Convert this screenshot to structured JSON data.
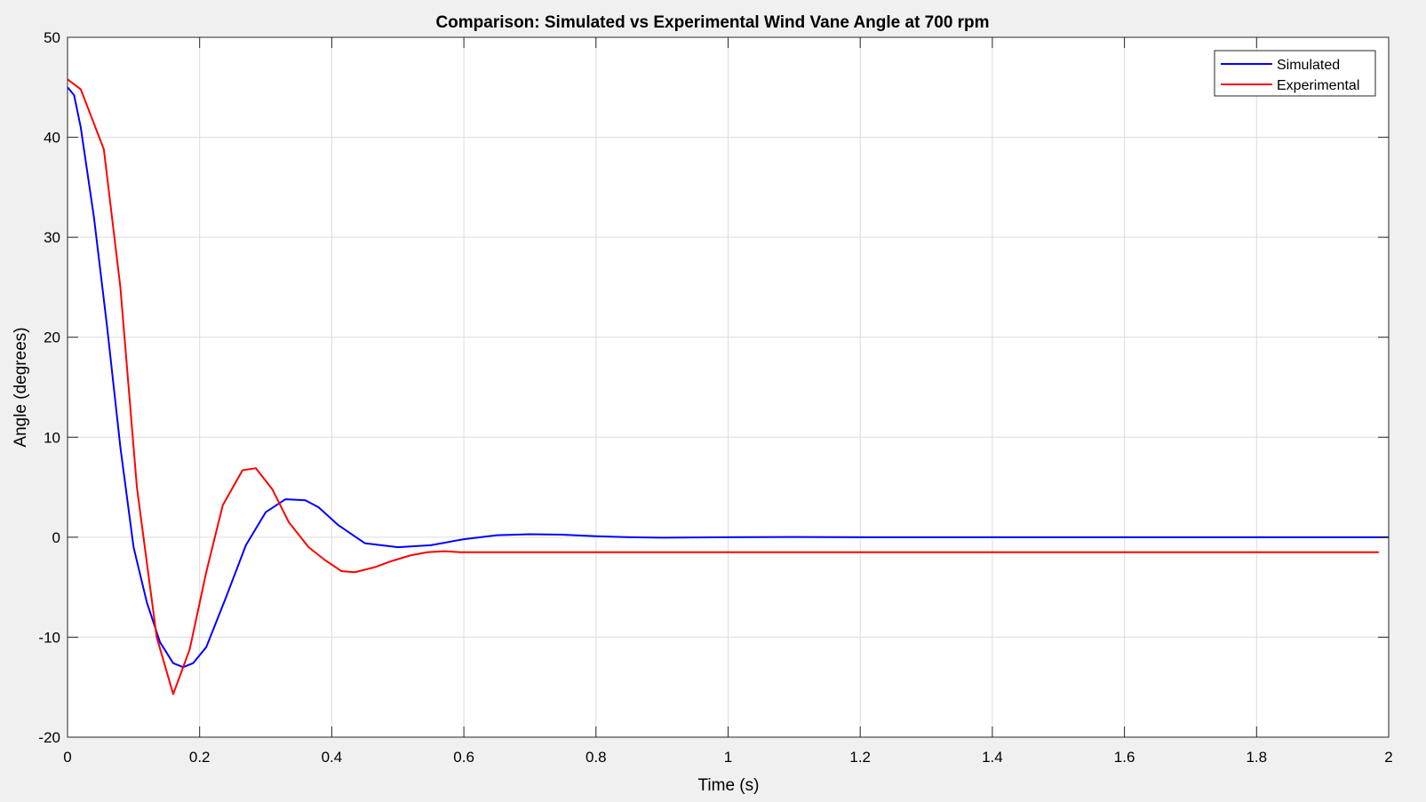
{
  "figure": {
    "background": "#f0f0f0",
    "axes_background": "#ffffff",
    "grid_color": "#dcdcdc"
  },
  "chart_data": {
    "type": "line",
    "title": "Comparison: Simulated vs Experimental Wind Vane Angle at 700 rpm",
    "xlabel": "Time (s)",
    "ylabel": "Angle (degrees)",
    "xlim": [
      0,
      2
    ],
    "ylim": [
      -20,
      50
    ],
    "xticks": [
      0,
      0.2,
      0.4,
      0.6,
      0.8,
      1,
      1.2,
      1.4,
      1.6,
      1.8,
      2
    ],
    "xtick_labels": [
      "0",
      "0.2",
      "0.4",
      "0.6",
      "0.8",
      "1",
      "1.2",
      "1.4",
      "1.6",
      "1.8",
      "2"
    ],
    "yticks": [
      -20,
      -10,
      0,
      10,
      20,
      30,
      40,
      50
    ],
    "ytick_labels": [
      "-20",
      "-10",
      "0",
      "10",
      "20",
      "30",
      "40",
      "50"
    ],
    "grid": true,
    "legend_position": "top-right",
    "series": [
      {
        "name": "Simulated",
        "color": "#0000ff",
        "x": [
          0,
          0.01,
          0.02,
          0.04,
          0.06,
          0.08,
          0.1,
          0.12,
          0.14,
          0.16,
          0.175,
          0.19,
          0.21,
          0.24,
          0.27,
          0.3,
          0.33,
          0.36,
          0.38,
          0.41,
          0.45,
          0.5,
          0.55,
          0.6,
          0.65,
          0.7,
          0.75,
          0.8,
          0.85,
          0.9,
          1.0,
          1.1,
          1.2,
          1.4,
          1.6,
          1.8,
          2.0
        ],
        "y": [
          45,
          44.2,
          41,
          32,
          21,
          9,
          -1,
          -6.5,
          -10.5,
          -12.6,
          -13,
          -12.6,
          -11,
          -6,
          -0.8,
          2.5,
          3.8,
          3.7,
          3,
          1.2,
          -0.6,
          -1,
          -0.8,
          -0.2,
          0.2,
          0.3,
          0.25,
          0.1,
          0,
          -0.05,
          0,
          0.02,
          0,
          0,
          0,
          0,
          0
        ]
      },
      {
        "name": "Experimental",
        "color": "#ff0000",
        "x": [
          0,
          0.02,
          0.055,
          0.08,
          0.105,
          0.135,
          0.16,
          0.185,
          0.21,
          0.235,
          0.265,
          0.285,
          0.31,
          0.335,
          0.365,
          0.39,
          0.415,
          0.435,
          0.465,
          0.49,
          0.52,
          0.545,
          0.57,
          0.595,
          0.62,
          0.7,
          0.8,
          1.0,
          1.2,
          1.4,
          1.6,
          1.8,
          1.985
        ],
        "y": [
          45.8,
          44.8,
          38.8,
          25,
          5,
          -10,
          -15.7,
          -11.2,
          -3.5,
          3.2,
          6.7,
          6.9,
          4.8,
          1.5,
          -1,
          -2.3,
          -3.4,
          -3.5,
          -3,
          -2.4,
          -1.8,
          -1.5,
          -1.4,
          -1.5,
          -1.5,
          -1.5,
          -1.5,
          -1.5,
          -1.5,
          -1.5,
          -1.5,
          -1.5,
          -1.5
        ]
      }
    ]
  }
}
